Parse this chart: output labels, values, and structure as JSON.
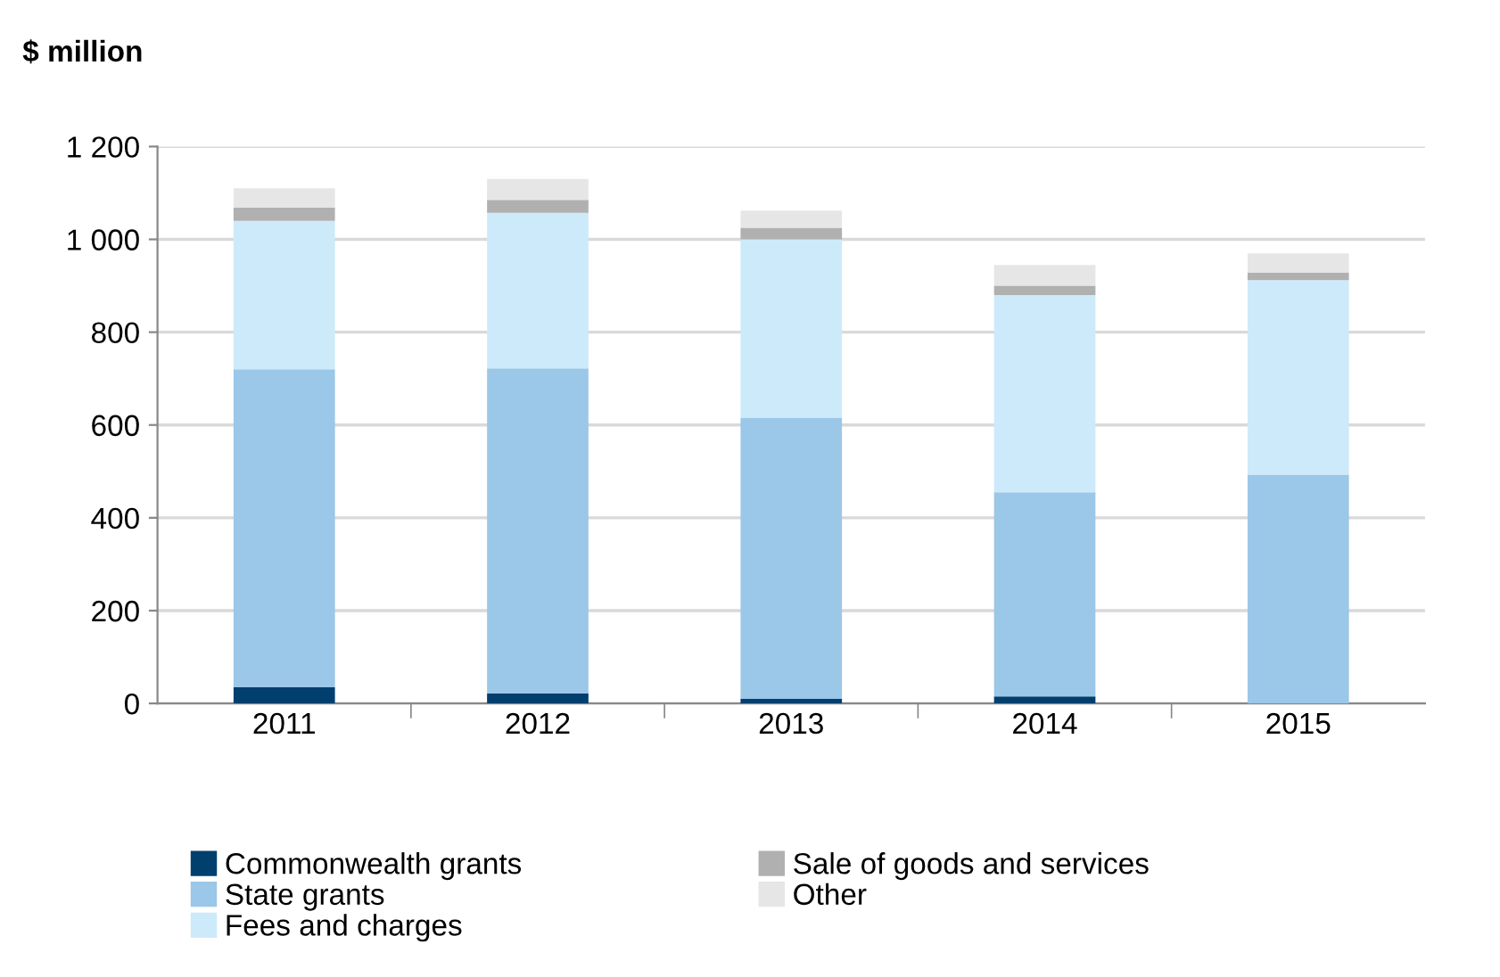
{
  "chart_data": {
    "type": "bar",
    "stacked": true,
    "ylabel": "$ million",
    "categories": [
      "2011",
      "2012",
      "2013",
      "2014",
      "2015"
    ],
    "series": [
      {
        "name": "Commonwealth grants",
        "color": "#003f6e",
        "values": [
          35,
          22,
          10,
          15,
          0
        ]
      },
      {
        "name": "State grants",
        "color": "#9bc7e8",
        "values": [
          685,
          700,
          605,
          440,
          493
        ]
      },
      {
        "name": "Fees and charges",
        "color": "#cceafa",
        "values": [
          320,
          335,
          385,
          425,
          419
        ]
      },
      {
        "name": "Sale of goods and services",
        "color": "#b0b0b0",
        "values": [
          28,
          28,
          25,
          20,
          16
        ]
      },
      {
        "name": "Other",
        "color": "#e6e6e6",
        "values": [
          42,
          45,
          37,
          45,
          42
        ]
      }
    ],
    "ylim": [
      0,
      1200
    ],
    "yticks": [
      0,
      200,
      400,
      600,
      800,
      {
        "value": 1000,
        "label": "1 000"
      },
      {
        "value": 1200,
        "label": "1 200"
      }
    ],
    "grid": "y",
    "legend": "bottom"
  }
}
